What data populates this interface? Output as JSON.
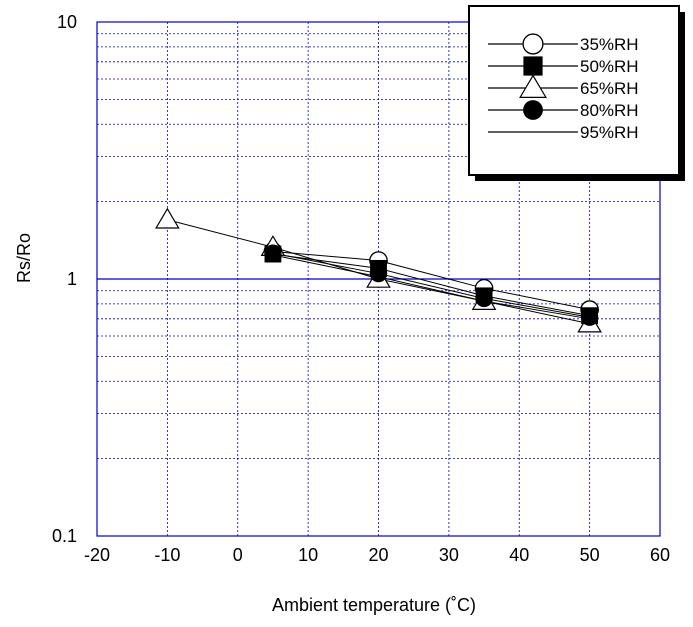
{
  "chart_data": {
    "type": "scatter",
    "xlabel": "Ambient temperature (˚C)",
    "ylabel": "Rs/Ro",
    "xlim": [
      -20,
      60
    ],
    "ylim": [
      0.1,
      10
    ],
    "yscale": "log",
    "grid": true,
    "legend_position": "top-right",
    "x_ticks": [
      "-20",
      "-10",
      "0",
      "10",
      "20",
      "30",
      "40",
      "50",
      "60"
    ],
    "y_ticks": [
      "0.1",
      "1",
      "10"
    ],
    "colors": {
      "grid": "#0000cc",
      "plot": "#000000"
    },
    "series": [
      {
        "name": "35%RH",
        "marker": "open-circle",
        "x": [
          5,
          20,
          35,
          50
        ],
        "y": [
          1.28,
          1.18,
          0.92,
          0.76
        ]
      },
      {
        "name": "50%RH",
        "marker": "filled-square",
        "x": [
          5,
          20,
          35,
          50
        ],
        "y": [
          1.25,
          1.1,
          0.86,
          0.72
        ]
      },
      {
        "name": "65%RH",
        "marker": "open-triangle",
        "x": [
          -10,
          5,
          20,
          35,
          50
        ],
        "y": [
          1.7,
          1.33,
          1.0,
          0.82,
          0.67
        ]
      },
      {
        "name": "80%RH",
        "marker": "filled-circle",
        "x": [
          5,
          20,
          35,
          50
        ],
        "y": [
          1.26,
          1.05,
          0.84,
          0.71
        ]
      },
      {
        "name": "95%RH",
        "marker": "line",
        "x": [
          5,
          20,
          35,
          50
        ],
        "y": [
          1.24,
          1.02,
          0.82,
          0.7
        ]
      }
    ]
  }
}
